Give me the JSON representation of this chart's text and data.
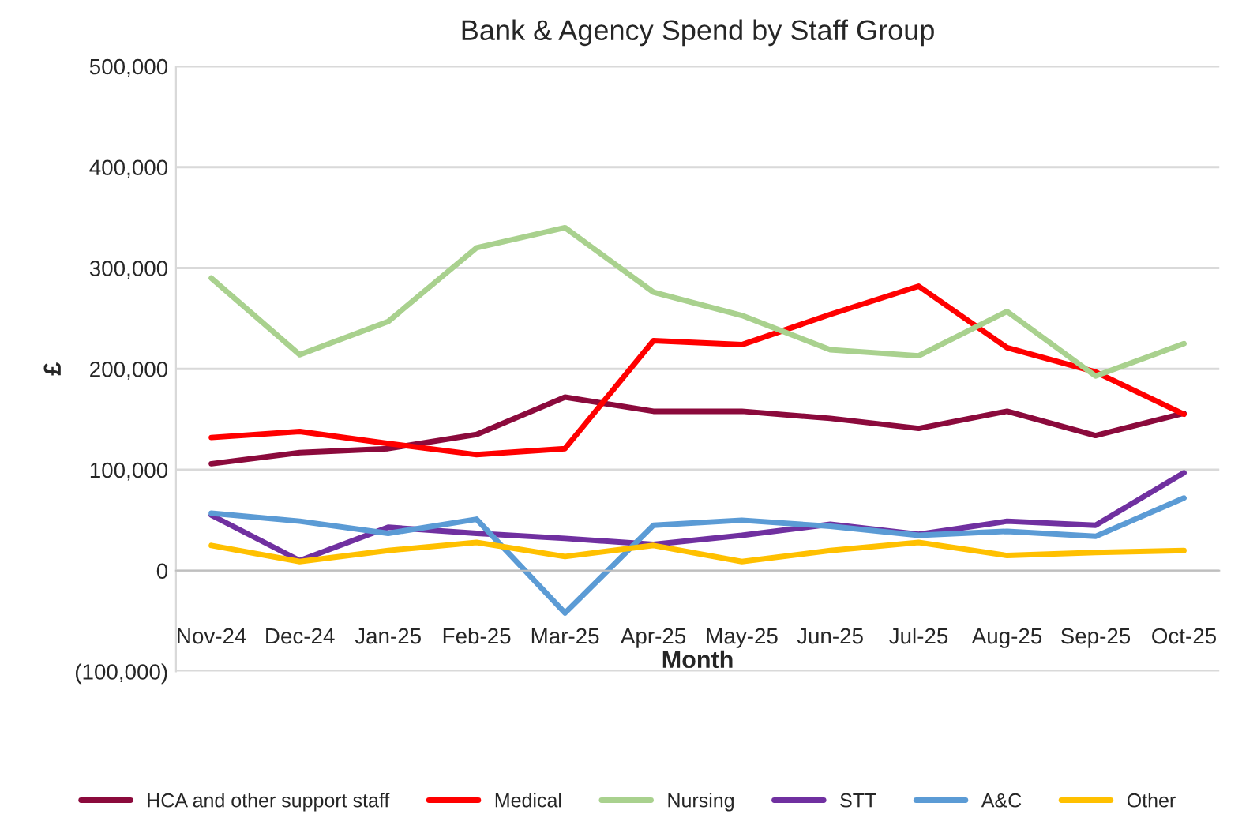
{
  "chart_data": {
    "type": "line",
    "title": "Bank & Agency Spend by Staff Group",
    "xlabel": "Month",
    "ylabel": "£",
    "categories": [
      "Nov-24",
      "Dec-24",
      "Jan-25",
      "Feb-25",
      "Mar-25",
      "Apr-25",
      "May-25",
      "Jun-25",
      "Jul-25",
      "Aug-25",
      "Sep-25",
      "Oct-25"
    ],
    "series": [
      {
        "name": "HCA and other support staff",
        "color": "#8b0a3c",
        "values": [
          106000,
          117000,
          121000,
          135000,
          172000,
          158000,
          158000,
          151000,
          141000,
          158000,
          134000,
          156000
        ]
      },
      {
        "name": "Medical",
        "color": "#ff0000",
        "values": [
          132000,
          138000,
          126000,
          115000,
          121000,
          228000,
          224000,
          254000,
          282000,
          221000,
          197000,
          155000
        ]
      },
      {
        "name": "Nursing",
        "color": "#a9d18e",
        "values": [
          290000,
          214000,
          247000,
          320000,
          340000,
          276000,
          253000,
          219000,
          213000,
          257000,
          193000,
          225000
        ]
      },
      {
        "name": "STT",
        "color": "#7030a0",
        "values": [
          55000,
          10000,
          43000,
          37000,
          32000,
          26000,
          35000,
          46000,
          36000,
          49000,
          45000,
          97000
        ]
      },
      {
        "name": "A&C",
        "color": "#5b9bd5",
        "values": [
          57000,
          49000,
          37000,
          51000,
          -42000,
          45000,
          50000,
          44000,
          35000,
          39000,
          34000,
          72000
        ]
      },
      {
        "name": "Other",
        "color": "#ffc000",
        "values": [
          25000,
          9000,
          20000,
          28000,
          14000,
          25000,
          9000,
          20000,
          28000,
          15000,
          18000,
          20000
        ]
      }
    ],
    "ylim": [
      -100000,
      500000
    ],
    "yticks": [
      {
        "value": -100000,
        "label": "(100,000)"
      },
      {
        "value": 0,
        "label": "0"
      },
      {
        "value": 100000,
        "label": "100,000"
      },
      {
        "value": 200000,
        "label": "200,000"
      },
      {
        "value": 300000,
        "label": "300,000"
      },
      {
        "value": 400000,
        "label": "400,000"
      },
      {
        "value": 500000,
        "label": "500,000"
      }
    ],
    "grid": "y",
    "legend": "bottom",
    "marker": "none",
    "line_style": "solid"
  }
}
